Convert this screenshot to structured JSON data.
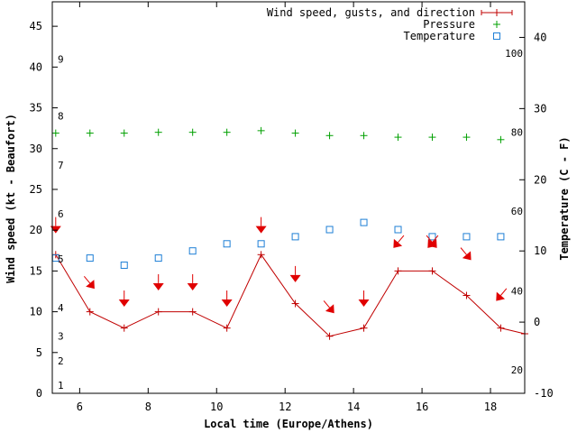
{
  "chart_data": {
    "type": "line",
    "xlabel": "Local time (Europe/Athens)",
    "ylabel": "Wind speed (kt - Beaufort)",
    "y2label": "Temperature (C - F)",
    "xlim": [
      5.2,
      19.0
    ],
    "ylim": [
      0,
      48
    ],
    "y2lim": [
      -10,
      45
    ],
    "x_ticks": [
      6,
      8,
      10,
      12,
      14,
      16,
      18
    ],
    "y_ticks": [
      0,
      5,
      10,
      15,
      20,
      25,
      30,
      35,
      40,
      45
    ],
    "y2_ticks": [
      -10,
      0,
      10,
      20,
      30,
      40
    ],
    "beaufort_labels": [
      {
        "kt": 1,
        "label": "1"
      },
      {
        "kt": 4,
        "label": "2"
      },
      {
        "kt": 7,
        "label": "3"
      },
      {
        "kt": 10.5,
        "label": "4"
      },
      {
        "kt": 16.5,
        "label": "5"
      },
      {
        "kt": 22,
        "label": "6"
      },
      {
        "kt": 28,
        "label": "7"
      },
      {
        "kt": 34,
        "label": "8"
      },
      {
        "kt": 41,
        "label": "9"
      }
    ],
    "fahrenheit_labels": [
      {
        "c": -6.7,
        "label": "20"
      },
      {
        "c": 4.4,
        "label": "40"
      },
      {
        "c": 15.6,
        "label": "60"
      },
      {
        "c": 26.7,
        "label": "80"
      },
      {
        "c": 37.8,
        "label": "100"
      }
    ],
    "legend": [
      {
        "label": "Wind speed, gusts, and direction",
        "color": "#c00000",
        "symbol": "line-plus"
      },
      {
        "label": "Pressure",
        "color": "#00a000",
        "symbol": "plus"
      },
      {
        "label": "Temperature",
        "color": "#1e7fd6",
        "symbol": "square"
      }
    ],
    "series": [
      {
        "name": "Wind speed, gusts, and direction",
        "axis": "left",
        "x": [
          5.3,
          6.3,
          7.3,
          8.3,
          9.3,
          10.3,
          11.3,
          12.3,
          13.3,
          14.3,
          15.3,
          16.3,
          17.3,
          18.3,
          19.0
        ],
        "y": [
          17,
          10,
          8,
          10,
          10,
          8,
          17,
          11,
          7,
          8,
          15,
          15,
          12,
          8,
          7.3
        ]
      },
      {
        "name": "Pressure",
        "axis": "left",
        "x": [
          5.3,
          6.3,
          7.3,
          8.3,
          9.3,
          10.3,
          11.3,
          12.3,
          13.3,
          14.3,
          15.3,
          16.3,
          17.3,
          18.3
        ],
        "y": [
          31.9,
          31.9,
          31.9,
          32.0,
          32.0,
          32.0,
          32.2,
          31.9,
          31.6,
          31.6,
          31.4,
          31.4,
          31.4,
          31.1
        ]
      },
      {
        "name": "Temperature",
        "axis": "right",
        "x": [
          5.3,
          6.3,
          7.3,
          8.3,
          9.3,
          10.3,
          11.3,
          12.3,
          13.3,
          14.3,
          15.3,
          16.3,
          17.3,
          18.3
        ],
        "y": [
          9,
          9,
          8,
          9,
          10,
          11,
          11,
          12,
          13,
          14,
          13,
          12,
          12,
          12
        ]
      }
    ],
    "wind_arrows": [
      {
        "x": 5.3,
        "y": 20.5,
        "dir": "down"
      },
      {
        "x": 6.3,
        "y": 13.5,
        "dir": "down-right"
      },
      {
        "x": 7.3,
        "y": 11.5,
        "dir": "down"
      },
      {
        "x": 8.3,
        "y": 13.5,
        "dir": "down"
      },
      {
        "x": 9.3,
        "y": 13.5,
        "dir": "down"
      },
      {
        "x": 10.3,
        "y": 11.5,
        "dir": "down"
      },
      {
        "x": 11.3,
        "y": 20.5,
        "dir": "down"
      },
      {
        "x": 12.3,
        "y": 14.5,
        "dir": "down"
      },
      {
        "x": 13.3,
        "y": 10.5,
        "dir": "down-right"
      },
      {
        "x": 14.3,
        "y": 11.5,
        "dir": "down"
      },
      {
        "x": 15.3,
        "y": 18.5,
        "dir": "down-left"
      },
      {
        "x": 16.3,
        "y": 18.5,
        "dir": "down-right"
      },
      {
        "x": 16.3,
        "y": 18.5,
        "dir": "down-left"
      },
      {
        "x": 17.3,
        "y": 17.0,
        "dir": "down-right"
      },
      {
        "x": 18.3,
        "y": 12.0,
        "dir": "down-left"
      }
    ]
  }
}
